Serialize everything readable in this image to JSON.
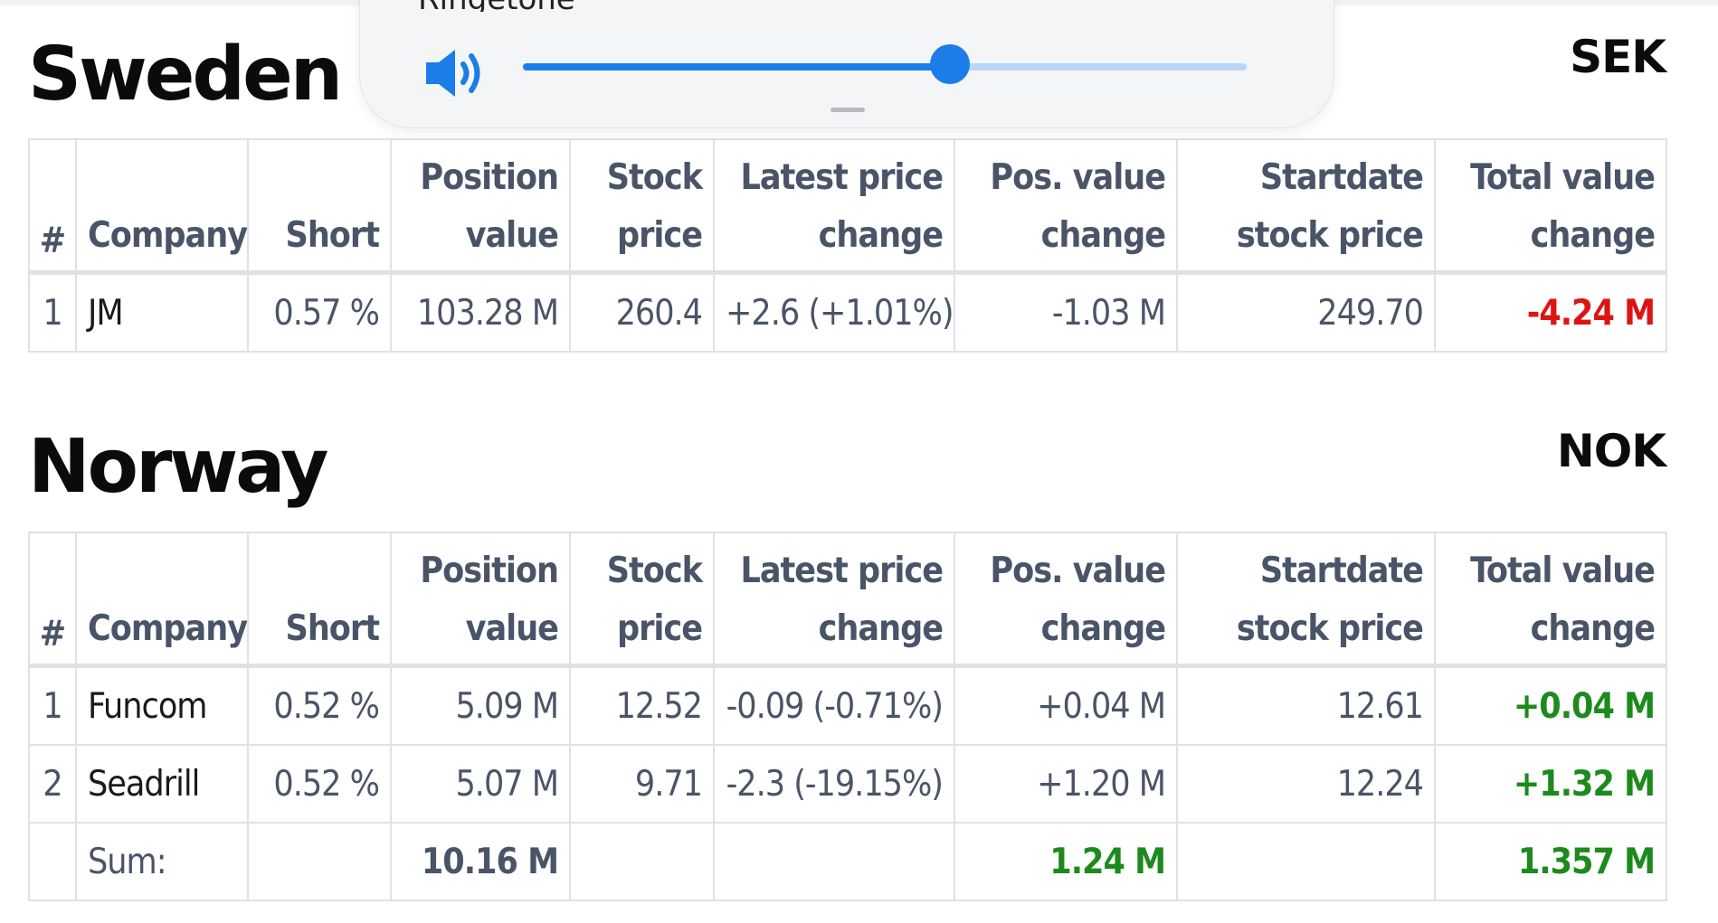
{
  "overlay": {
    "label": "Ringetone",
    "volume_level": 0.59,
    "icon": "speaker-volume-icon",
    "accent_color": "#1b7ee8"
  },
  "columns": [
    "#",
    "Company",
    "Short",
    "Position value",
    "Stock price",
    "Latest price change",
    "Pos. value change",
    "Startdate stock price",
    "Total value change"
  ],
  "sweden": {
    "title": "Sweden",
    "currency": "SEK",
    "header": {
      "rank": "#",
      "company": "Company",
      "short": "Short",
      "position_value_1": "Position",
      "position_value_2": "value",
      "stock_price_1": "Stock",
      "stock_price_2": "price",
      "latest_change_1": "Latest price",
      "latest_change_2": "change",
      "pos_value_change_1": "Pos. value",
      "pos_value_change_2": "change",
      "startdate_price_1": "Startdate",
      "startdate_price_2": "stock price",
      "total_change_1": "Total value",
      "total_change_2": "change"
    },
    "rows": [
      {
        "rank": "1",
        "company": "JM",
        "short": "0.57 %",
        "position_value": "103.28 M",
        "stock_price": "260.4",
        "latest_change": "+2.6 (+1.01%)",
        "pos_value_change": "-1.03 M",
        "startdate_price": "249.70",
        "total_change": "-4.24 M"
      }
    ]
  },
  "norway": {
    "title": "Norway",
    "currency": "NOK",
    "header": {
      "rank": "#",
      "company": "Company",
      "short": "Short",
      "position_value_1": "Position",
      "position_value_2": "value",
      "stock_price_1": "Stock",
      "stock_price_2": "price",
      "latest_change_1": "Latest price",
      "latest_change_2": "change",
      "pos_value_change_1": "Pos. value",
      "pos_value_change_2": "change",
      "startdate_price_1": "Startdate",
      "startdate_price_2": "stock price",
      "total_change_1": "Total value",
      "total_change_2": "change"
    },
    "rows": [
      {
        "rank": "1",
        "company": "Funcom",
        "short": "0.52 %",
        "position_value": "5.09 M",
        "stock_price": "12.52",
        "latest_change": "-0.09 (-0.71%)",
        "pos_value_change": "+0.04 M",
        "startdate_price": "12.61",
        "total_change": "+0.04 M"
      },
      {
        "rank": "2",
        "company": "Seadrill",
        "short": "0.52 %",
        "position_value": "5.07 M",
        "stock_price": "9.71",
        "latest_change": "-2.3 (-19.15%)",
        "pos_value_change": "+1.20 M",
        "startdate_price": "12.24",
        "total_change": "+1.32 M"
      }
    ],
    "sum": {
      "label": "Sum:",
      "position_value": "10.16 M",
      "pos_value_change": "1.24 M",
      "total_change": "1.357 M"
    }
  },
  "colors": {
    "negative": "#dd1414",
    "positive": "#1d8a1d",
    "header_text": "#4a5469",
    "border": "#dfe1e6"
  }
}
